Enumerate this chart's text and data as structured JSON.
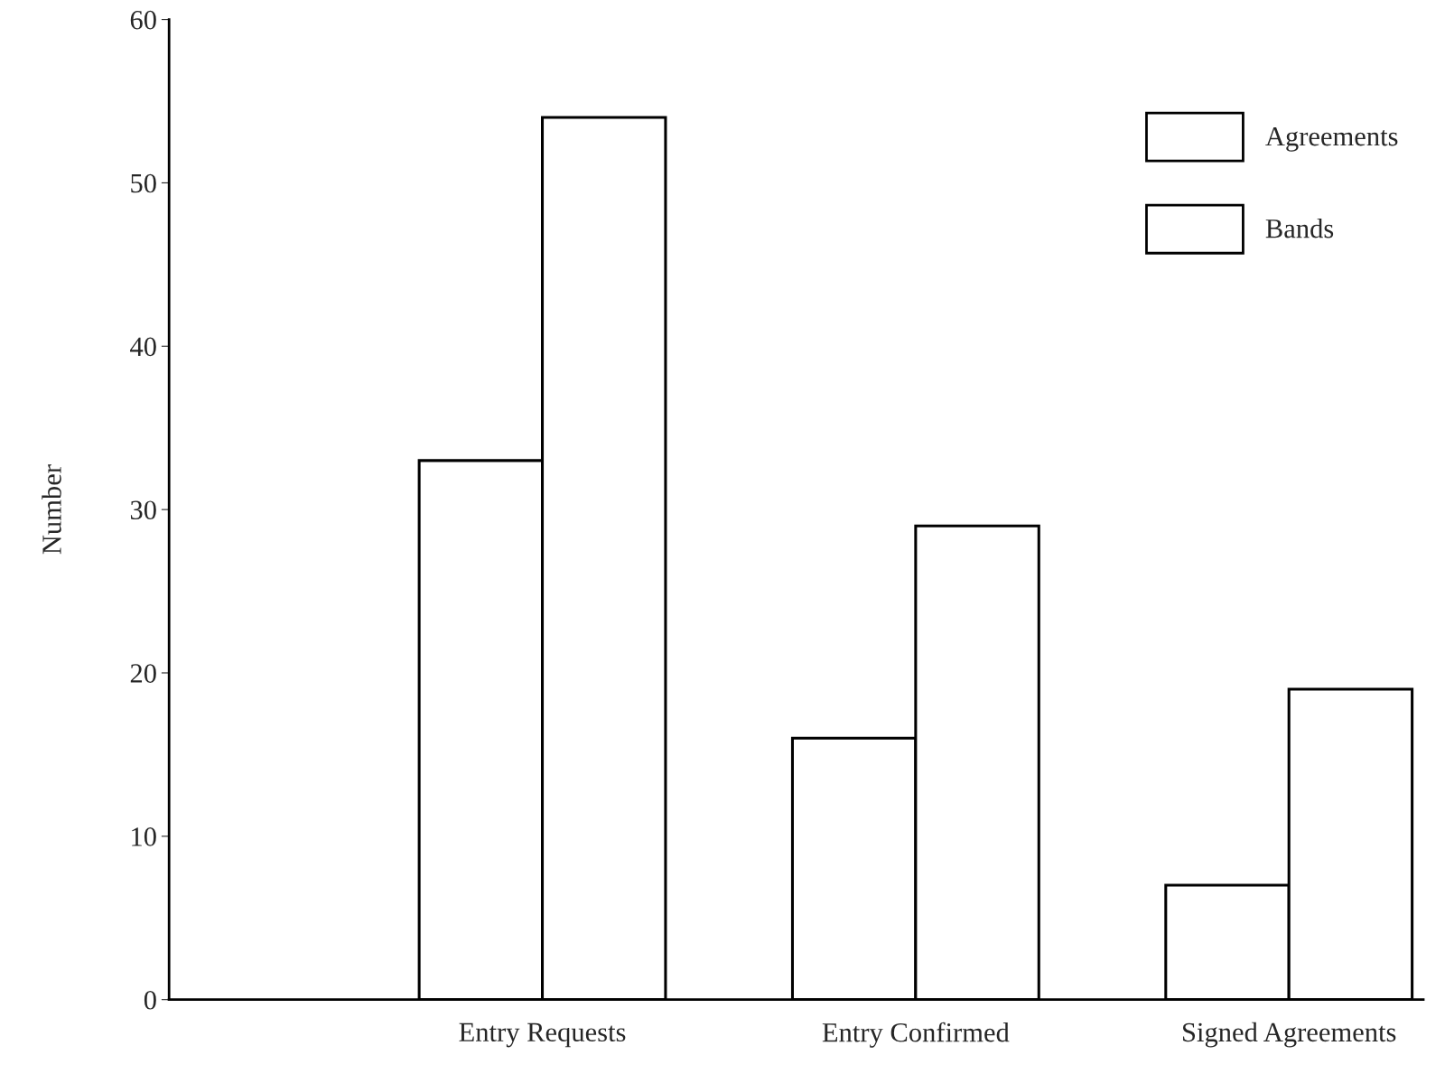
{
  "chart_data": {
    "type": "bar",
    "ylabel": "Number",
    "categories": [
      "Entry Requests",
      "Entry Confirmed",
      "Signed Agreements"
    ],
    "series": [
      {
        "name": "Agreements",
        "color": "#ffffff",
        "values": [
          33,
          16,
          7
        ]
      },
      {
        "name": "Bands",
        "color": "#ffffff",
        "values": [
          54,
          29,
          19
        ]
      }
    ],
    "ylim": [
      0,
      60
    ],
    "yticks": [
      0,
      10,
      20,
      30,
      40,
      50,
      60
    ],
    "grid": false,
    "legend": "top right"
  }
}
